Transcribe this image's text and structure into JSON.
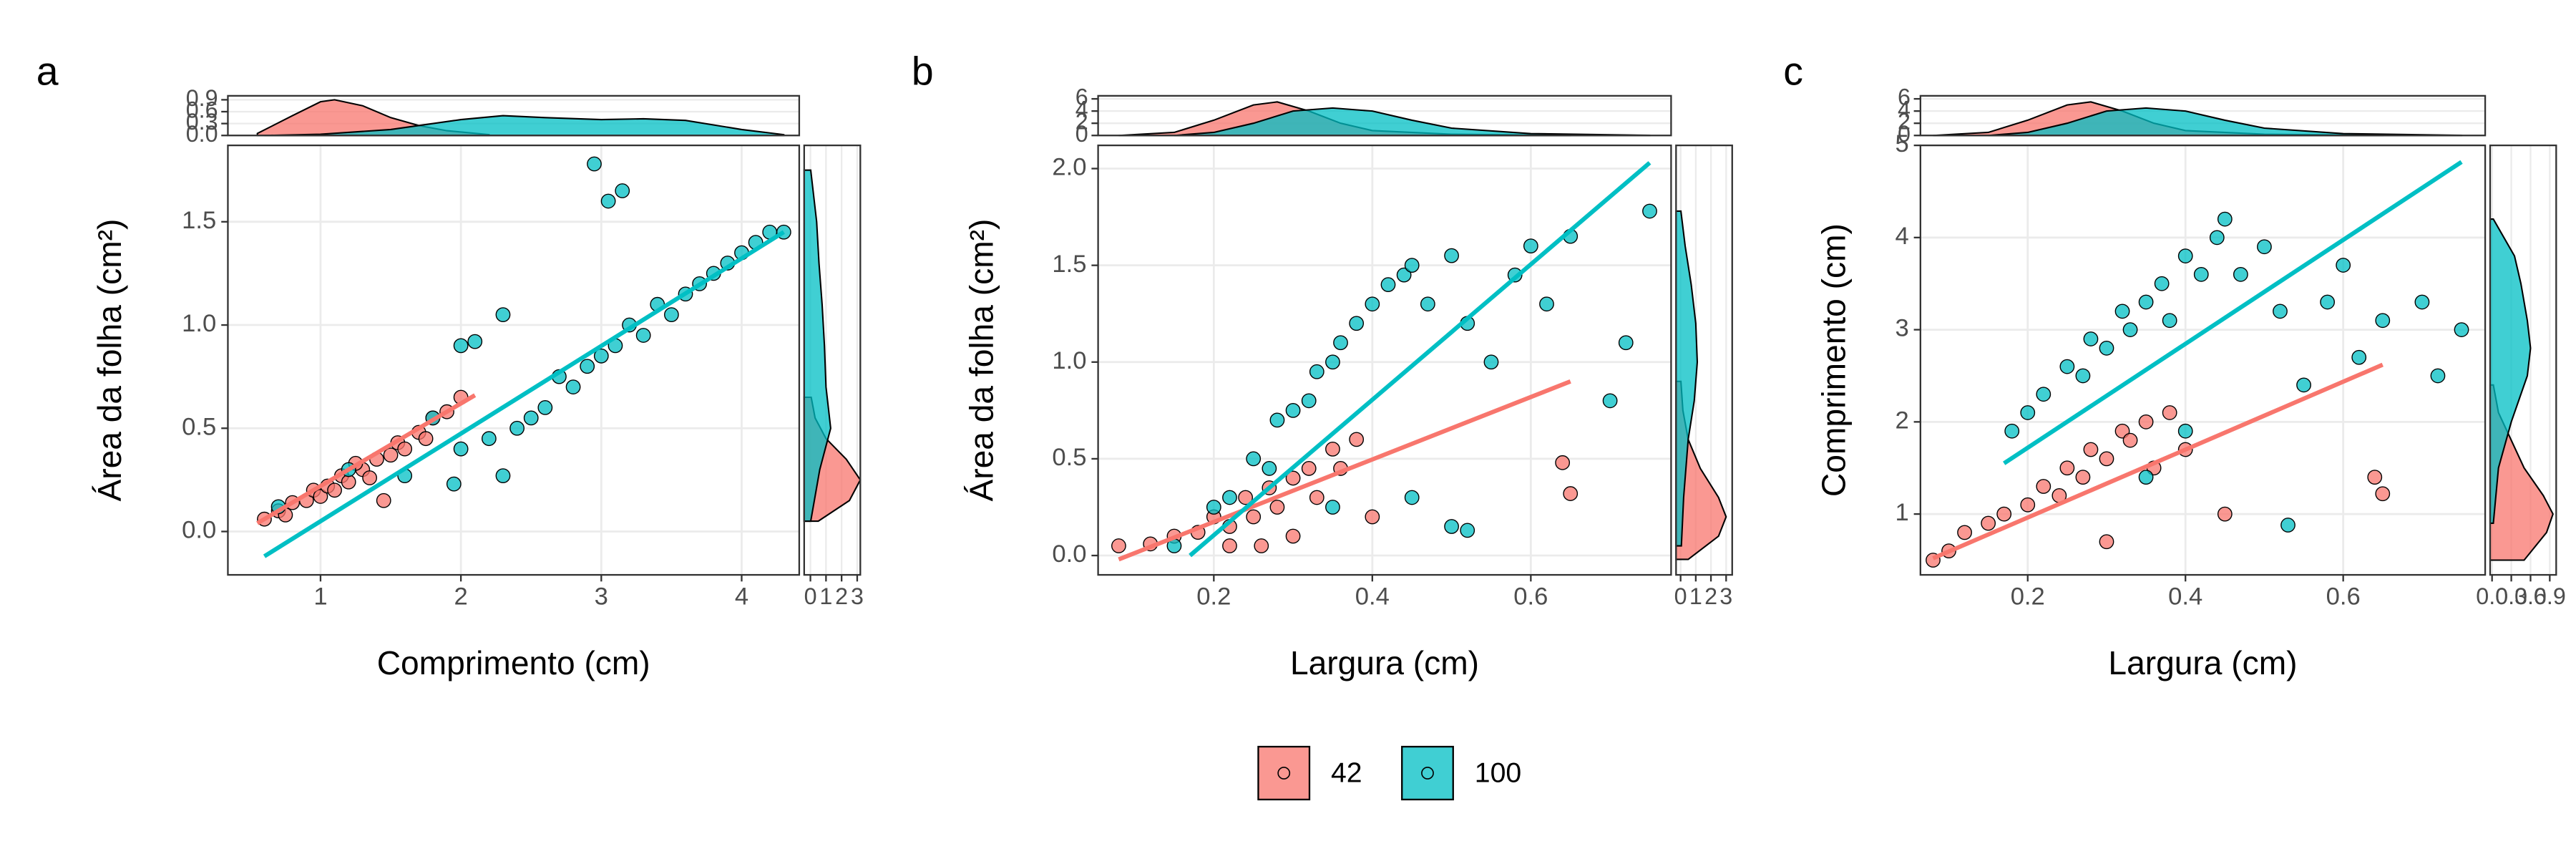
{
  "chart_data": [
    {
      "type": "scatter",
      "panel_label": "a",
      "xlabel": "Comprimento (cm)",
      "ylabel": "Área da folha (cm²)",
      "xlim": [
        0.34,
        4.41
      ],
      "ylim": [
        -0.21,
        1.87
      ],
      "xticks": [
        1,
        2,
        3,
        4
      ],
      "yticks": [
        {
          "value": 0,
          "label": "0.0"
        },
        0.5,
        {
          "value": 1,
          "label": "1.0"
        },
        1.5
      ],
      "grid": true,
      "series": [
        {
          "name": "42",
          "color": "#F8766D",
          "x": [
            0.6,
            0.7,
            0.75,
            0.8,
            0.9,
            0.95,
            1.0,
            1.05,
            1.1,
            1.15,
            1.2,
            1.3,
            1.35,
            1.4,
            1.5,
            1.55,
            1.6,
            1.7,
            1.75,
            1.8,
            1.9,
            2.0,
            1.45,
            1.25
          ],
          "values": [
            0.06,
            0.1,
            0.08,
            0.14,
            0.15,
            0.2,
            0.17,
            0.22,
            0.2,
            0.27,
            0.24,
            0.3,
            0.26,
            0.35,
            0.37,
            0.43,
            0.4,
            0.48,
            0.45,
            0.55,
            0.58,
            0.65,
            0.15,
            0.33
          ]
        },
        {
          "name": "100",
          "color": "#00BFC4",
          "x": [
            0.7,
            1.2,
            1.6,
            1.8,
            2.0,
            2.1,
            2.2,
            2.3,
            2.4,
            2.5,
            2.6,
            2.7,
            2.8,
            2.9,
            3.0,
            3.1,
            3.2,
            3.3,
            3.4,
            3.5,
            3.6,
            3.7,
            3.8,
            3.9,
            4.0,
            4.1,
            4.2,
            4.3,
            2.3,
            2.95,
            3.05,
            3.15,
            2.0,
            1.95
          ],
          "values": [
            0.12,
            0.3,
            0.27,
            0.55,
            0.4,
            0.92,
            0.45,
            1.05,
            0.5,
            0.55,
            0.6,
            0.75,
            0.7,
            0.8,
            0.85,
            0.9,
            1.0,
            0.95,
            1.1,
            1.05,
            1.15,
            1.2,
            1.25,
            1.3,
            1.35,
            1.4,
            1.45,
            1.45,
            0.27,
            1.78,
            1.6,
            1.65,
            0.9,
            0.23
          ]
        }
      ],
      "fits": [
        {
          "x": [
            0.55,
            2.1
          ],
          "values": [
            0.04,
            0.66
          ]
        },
        {
          "x": [
            0.6,
            4.3
          ],
          "values": [
            -0.12,
            1.45
          ]
        }
      ],
      "top_density": {
        "ylim": [
          0,
          1.0
        ],
        "yticks": [
          {
            "value": 0,
            "label": "0.0"
          },
          0.3,
          0.6,
          0.9
        ],
        "series": [
          {
            "x": [
              0.55,
              0.8,
              1.0,
              1.1,
              1.3,
              1.5,
              1.7,
              1.9,
              2.2
            ],
            "values": [
              0.05,
              0.5,
              0.85,
              0.9,
              0.75,
              0.45,
              0.25,
              0.12,
              0.02
            ]
          },
          {
            "x": [
              0.6,
              1.0,
              1.5,
              2.0,
              2.3,
              2.6,
              3.0,
              3.3,
              3.6,
              4.0,
              4.3
            ],
            "values": [
              0.0,
              0.03,
              0.15,
              0.4,
              0.5,
              0.45,
              0.4,
              0.42,
              0.38,
              0.15,
              0.02
            ]
          }
        ]
      },
      "right_density": {
        "xlim": [
          -0.4,
          3.2
        ],
        "xticks": [
          0,
          1,
          2,
          3
        ],
        "series": [
          {
            "y": [
              0.05,
              0.15,
              0.25,
              0.35,
              0.45,
              0.55,
              0.65
            ],
            "values": [
              0.5,
              2.5,
              3.2,
              2.3,
              1.0,
              0.3,
              0.05
            ]
          },
          {
            "y": [
              0.05,
              0.3,
              0.5,
              0.7,
              0.9,
              1.1,
              1.3,
              1.5,
              1.75
            ],
            "values": [
              0.02,
              0.6,
              1.3,
              1.0,
              0.9,
              0.75,
              0.55,
              0.4,
              0.02
            ]
          }
        ]
      }
    },
    {
      "type": "scatter",
      "panel_label": "b",
      "xlabel": "Largura (cm)",
      "ylabel": "Área da folha (cm²)",
      "xlim": [
        0.054,
        0.777
      ],
      "ylim": [
        -0.1,
        2.12
      ],
      "xticks": [
        0.2,
        0.4,
        0.6
      ],
      "yticks": [
        {
          "value": 0,
          "label": "0.0"
        },
        0.5,
        {
          "value": 1,
          "label": "1.0"
        },
        1.5,
        {
          "value": 2,
          "label": "2.0"
        }
      ],
      "grid": true,
      "series": [
        {
          "name": "42",
          "color": "#F8766D",
          "x": [
            0.08,
            0.12,
            0.15,
            0.18,
            0.2,
            0.22,
            0.24,
            0.25,
            0.27,
            0.28,
            0.3,
            0.32,
            0.33,
            0.35,
            0.36,
            0.38,
            0.3,
            0.26,
            0.22,
            0.64,
            0.65,
            0.4
          ],
          "values": [
            0.05,
            0.06,
            0.1,
            0.12,
            0.2,
            0.15,
            0.3,
            0.2,
            0.35,
            0.25,
            0.4,
            0.45,
            0.3,
            0.55,
            0.45,
            0.6,
            0.1,
            0.05,
            0.05,
            0.48,
            0.32,
            0.2
          ]
        },
        {
          "name": "100",
          "color": "#00BFC4",
          "x": [
            0.15,
            0.2,
            0.22,
            0.25,
            0.27,
            0.28,
            0.3,
            0.32,
            0.33,
            0.35,
            0.36,
            0.38,
            0.4,
            0.42,
            0.44,
            0.45,
            0.47,
            0.5,
            0.52,
            0.55,
            0.58,
            0.6,
            0.62,
            0.65,
            0.7,
            0.72,
            0.75,
            0.5,
            0.52,
            0.45,
            0.35
          ],
          "values": [
            0.05,
            0.25,
            0.3,
            0.5,
            0.45,
            0.7,
            0.75,
            0.8,
            0.95,
            1.0,
            1.1,
            1.2,
            1.3,
            1.4,
            1.45,
            1.5,
            1.3,
            1.55,
            1.2,
            1.0,
            1.45,
            1.6,
            1.3,
            1.65,
            0.8,
            1.1,
            1.78,
            0.15,
            0.13,
            0.3,
            0.25
          ]
        }
      ],
      "fits": [
        {
          "x": [
            0.08,
            0.65
          ],
          "values": [
            -0.02,
            0.9
          ]
        },
        {
          "x": [
            0.17,
            0.75
          ],
          "values": [
            0.0,
            2.03
          ]
        }
      ],
      "top_density": {
        "ylim": [
          0,
          6.5
        ],
        "yticks": [
          0,
          2,
          4,
          6
        ],
        "series": [
          {
            "x": [
              0.08,
              0.15,
              0.2,
              0.25,
              0.28,
              0.32,
              0.36,
              0.4,
              0.5,
              0.65
            ],
            "values": [
              0,
              0.5,
              2.5,
              5.0,
              5.5,
              4.0,
              2.0,
              0.8,
              0.2,
              0.02
            ]
          },
          {
            "x": [
              0.15,
              0.2,
              0.25,
              0.3,
              0.35,
              0.4,
              0.45,
              0.5,
              0.6,
              0.75
            ],
            "values": [
              0,
              0.5,
              2.0,
              4.0,
              4.5,
              4.0,
              2.5,
              1.2,
              0.3,
              0.02
            ]
          }
        ]
      },
      "right_density": {
        "xlim": [
          -0.3,
          3.4
        ],
        "xticks": [
          0,
          1,
          2,
          3
        ],
        "series": [
          {
            "y": [
              -0.02,
              0.1,
              0.2,
              0.3,
              0.45,
              0.6,
              0.75,
              0.9
            ],
            "values": [
              0.5,
              2.5,
              3.0,
              2.5,
              1.3,
              0.5,
              0.15,
              0.02
            ]
          },
          {
            "y": [
              0.05,
              0.3,
              0.6,
              0.8,
              1.0,
              1.2,
              1.4,
              1.6,
              1.78
            ],
            "values": [
              0.05,
              0.2,
              0.5,
              0.9,
              1.1,
              1.0,
              0.7,
              0.3,
              0.02
            ]
          }
        ]
      }
    },
    {
      "type": "scatter",
      "panel_label": "c",
      "xlabel": "Largura (cm)",
      "ylabel": "Comprimento (cm)",
      "xlim": [
        0.064,
        0.78
      ],
      "ylim": [
        0.34,
        5.0
      ],
      "xticks": [
        0.2,
        0.4,
        0.6
      ],
      "yticks": [
        1,
        2,
        3,
        4,
        5
      ],
      "grid": true,
      "series": [
        {
          "name": "42",
          "color": "#F8766D",
          "x": [
            0.08,
            0.1,
            0.12,
            0.15,
            0.17,
            0.2,
            0.22,
            0.24,
            0.25,
            0.27,
            0.28,
            0.3,
            0.32,
            0.33,
            0.35,
            0.36,
            0.38,
            0.4,
            0.45,
            0.64,
            0.65,
            0.3
          ],
          "values": [
            0.5,
            0.6,
            0.8,
            0.9,
            1.0,
            1.1,
            1.3,
            1.2,
            1.5,
            1.4,
            1.7,
            1.6,
            1.9,
            1.8,
            2.0,
            1.5,
            2.1,
            1.7,
            1.0,
            1.4,
            1.22,
            0.7
          ]
        },
        {
          "name": "100",
          "color": "#00BFC4",
          "x": [
            0.18,
            0.2,
            0.22,
            0.25,
            0.27,
            0.28,
            0.3,
            0.32,
            0.33,
            0.35,
            0.37,
            0.38,
            0.4,
            0.42,
            0.44,
            0.45,
            0.47,
            0.5,
            0.52,
            0.55,
            0.58,
            0.6,
            0.62,
            0.65,
            0.7,
            0.72,
            0.75,
            0.53,
            0.35,
            0.4
          ],
          "values": [
            1.9,
            2.1,
            2.3,
            2.6,
            2.5,
            2.9,
            2.8,
            3.2,
            3.0,
            3.3,
            3.5,
            3.1,
            3.8,
            3.6,
            4.0,
            4.2,
            3.6,
            3.9,
            3.2,
            2.4,
            3.3,
            3.7,
            2.7,
            3.1,
            3.3,
            2.5,
            3.0,
            0.88,
            1.4,
            1.9
          ]
        }
      ],
      "fits": [
        {
          "x": [
            0.08,
            0.65
          ],
          "values": [
            0.52,
            2.62
          ]
        },
        {
          "x": [
            0.17,
            0.75
          ],
          "values": [
            1.55,
            4.82
          ]
        }
      ],
      "top_density": {
        "ylim": [
          0,
          6.5
        ],
        "yticks": [
          0,
          2,
          4,
          6
        ],
        "series": [
          {
            "x": [
              0.08,
              0.15,
              0.2,
              0.25,
              0.28,
              0.32,
              0.36,
              0.4,
              0.5,
              0.65
            ],
            "values": [
              0,
              0.5,
              2.5,
              5.0,
              5.5,
              4.0,
              2.0,
              0.8,
              0.2,
              0.02
            ]
          },
          {
            "x": [
              0.15,
              0.2,
              0.25,
              0.3,
              0.35,
              0.4,
              0.45,
              0.5,
              0.6,
              0.75
            ],
            "values": [
              0,
              0.5,
              2.0,
              4.0,
              4.5,
              4.0,
              2.5,
              1.2,
              0.3,
              0.02
            ]
          }
        ]
      },
      "right_density": {
        "xlim": [
          -0.03,
          1.0
        ],
        "xticks": [
          {
            "value": 0,
            "label": "0.0"
          },
          0.3,
          0.6,
          0.9
        ],
        "series": [
          {
            "y": [
              0.5,
              0.8,
              1.0,
              1.2,
              1.5,
              1.8,
              2.1,
              2.4
            ],
            "values": [
              0.5,
              0.85,
              0.95,
              0.8,
              0.5,
              0.3,
              0.1,
              0.02
            ]
          },
          {
            "y": [
              0.9,
              1.5,
              2.0,
              2.5,
              2.8,
              3.1,
              3.5,
              3.8,
              4.2
            ],
            "values": [
              0.02,
              0.1,
              0.3,
              0.55,
              0.6,
              0.55,
              0.45,
              0.35,
              0.02
            ]
          }
        ]
      }
    }
  ]
}
